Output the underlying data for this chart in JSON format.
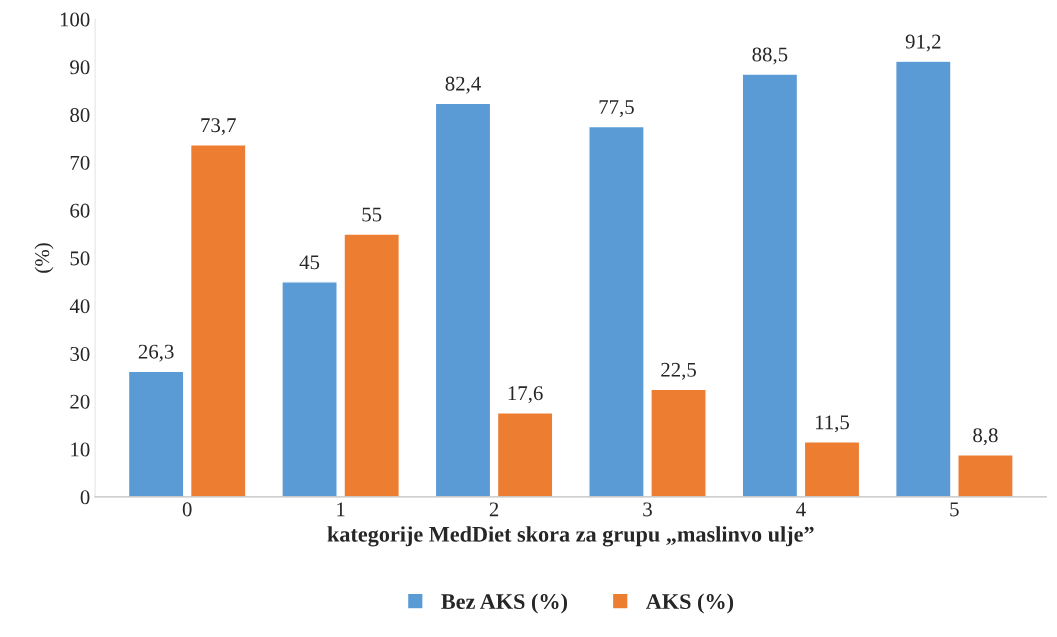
{
  "chart_data": {
    "type": "bar",
    "xlabel": "kategorije MedDiet skora za grupu „maslinvo ulje”",
    "ylabel": "(%)",
    "categories": [
      "0",
      "1",
      "2",
      "3",
      "4",
      "5"
    ],
    "series": [
      {
        "name": "Bez AKS (%)",
        "color": "#5b9bd5",
        "values": [
          26.3,
          45,
          82.4,
          77.5,
          88.5,
          91.2
        ],
        "value_labels": [
          "26,3",
          "45",
          "82,4",
          "77,5",
          "88,5",
          "91,2"
        ]
      },
      {
        "name": "AKS (%)",
        "color": "#ed7d31",
        "values": [
          73.7,
          55,
          17.6,
          22.5,
          11.5,
          8.8
        ],
        "value_labels": [
          "73,7",
          "55",
          "17,6",
          "22,5",
          "11,5",
          "8,8"
        ]
      }
    ],
    "ylim": [
      0,
      100
    ],
    "yticks": [
      0,
      10,
      20,
      30,
      40,
      50,
      60,
      70,
      80,
      90,
      100
    ],
    "grid": false,
    "legend": "bottom"
  }
}
